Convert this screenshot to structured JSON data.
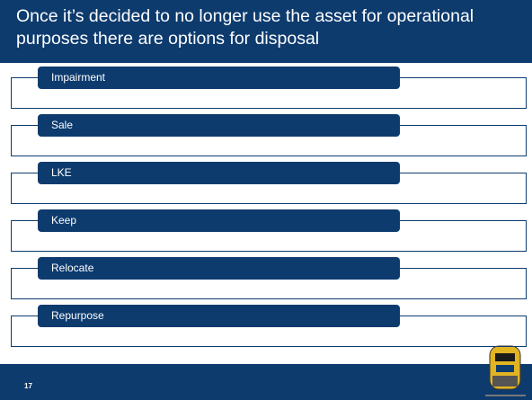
{
  "title": "Once it’s decided to no longer use the asset for operational purposes there are options for disposal",
  "items": [
    "Impairment",
    "Sale",
    "LKE",
    "Keep",
    "Relocate",
    "Repurpose"
  ],
  "page_number": "17"
}
